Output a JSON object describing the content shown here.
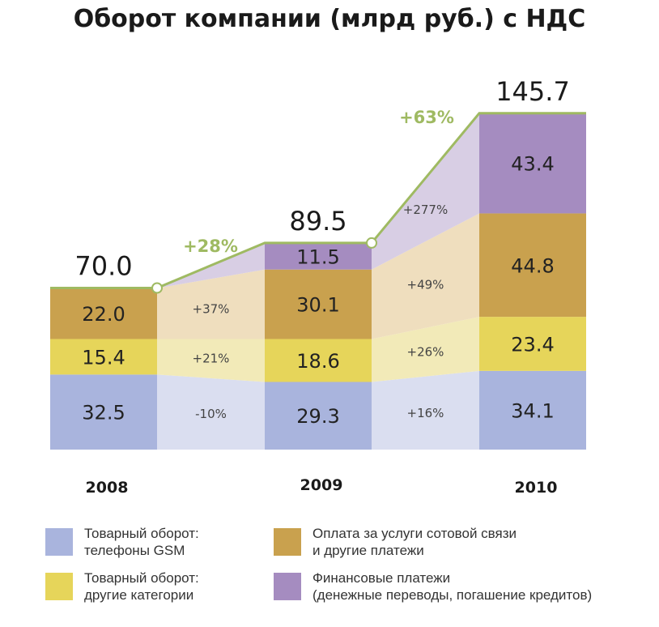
{
  "title": "Оборот компании (млрд руб.) с НДС",
  "colors": {
    "gsm": "#a9b4dd",
    "other": "#e6d55a",
    "services": "#c9a14e",
    "finance": "#a58cc0",
    "growth": "#9fba62",
    "gsm_band": "#d8dcef",
    "other_band": "#f1e9b4",
    "services_band": "#eedcbb",
    "finance_band": "#d6cbe3"
  },
  "chart_data": {
    "type": "bar",
    "stacked": true,
    "title": "Оборот компании (млрд руб.) с НДС",
    "categories": [
      "2008",
      "2009",
      "2010"
    ],
    "series": [
      {
        "key": "gsm",
        "name": "Товарный оборот: телефоны GSM",
        "values": [
          32.5,
          29.3,
          34.1
        ],
        "labels": [
          "32.5",
          "29.3",
          "34.1"
        ],
        "change_labels": [
          "-10%",
          "+16%"
        ]
      },
      {
        "key": "other",
        "name": "Товарный оборот: другие категории",
        "values": [
          15.4,
          18.6,
          23.4
        ],
        "labels": [
          "15.4",
          "18.6",
          "23.4"
        ],
        "change_labels": [
          "+21%",
          "+26%"
        ]
      },
      {
        "key": "services",
        "name": "Оплата за услуги сотовой связи и другие платежи",
        "values": [
          22.0,
          30.1,
          44.8
        ],
        "labels": [
          "22.0",
          "30.1",
          "44.8"
        ],
        "change_labels": [
          "+37%",
          "+49%"
        ]
      },
      {
        "key": "finance",
        "name": "Финансовые платежи (денежные переводы, погашение кредитов)",
        "values": [
          0,
          11.5,
          43.4
        ],
        "labels": [
          "",
          "11.5",
          "43.4"
        ],
        "change_labels": [
          "",
          "+277%"
        ]
      }
    ],
    "totals": [
      70.0,
      89.5,
      145.7
    ],
    "total_labels": [
      "70.0",
      "89.5",
      "145.7"
    ],
    "growth_labels": [
      "+28%",
      "+63%"
    ],
    "ylim": [
      0,
      150
    ]
  },
  "legend": [
    {
      "key": "gsm",
      "lines": [
        "Товарный оборот:",
        "телефоны GSM"
      ]
    },
    {
      "key": "services",
      "lines": [
        "Оплата за услуги сотовой связи",
        "и другие платежи"
      ]
    },
    {
      "key": "other",
      "lines": [
        "Товарный оборот:",
        "другие категории"
      ]
    },
    {
      "key": "finance",
      "lines": [
        "Финансовые платежи",
        "(денежные переводы, погашение кредитов)"
      ]
    }
  ]
}
